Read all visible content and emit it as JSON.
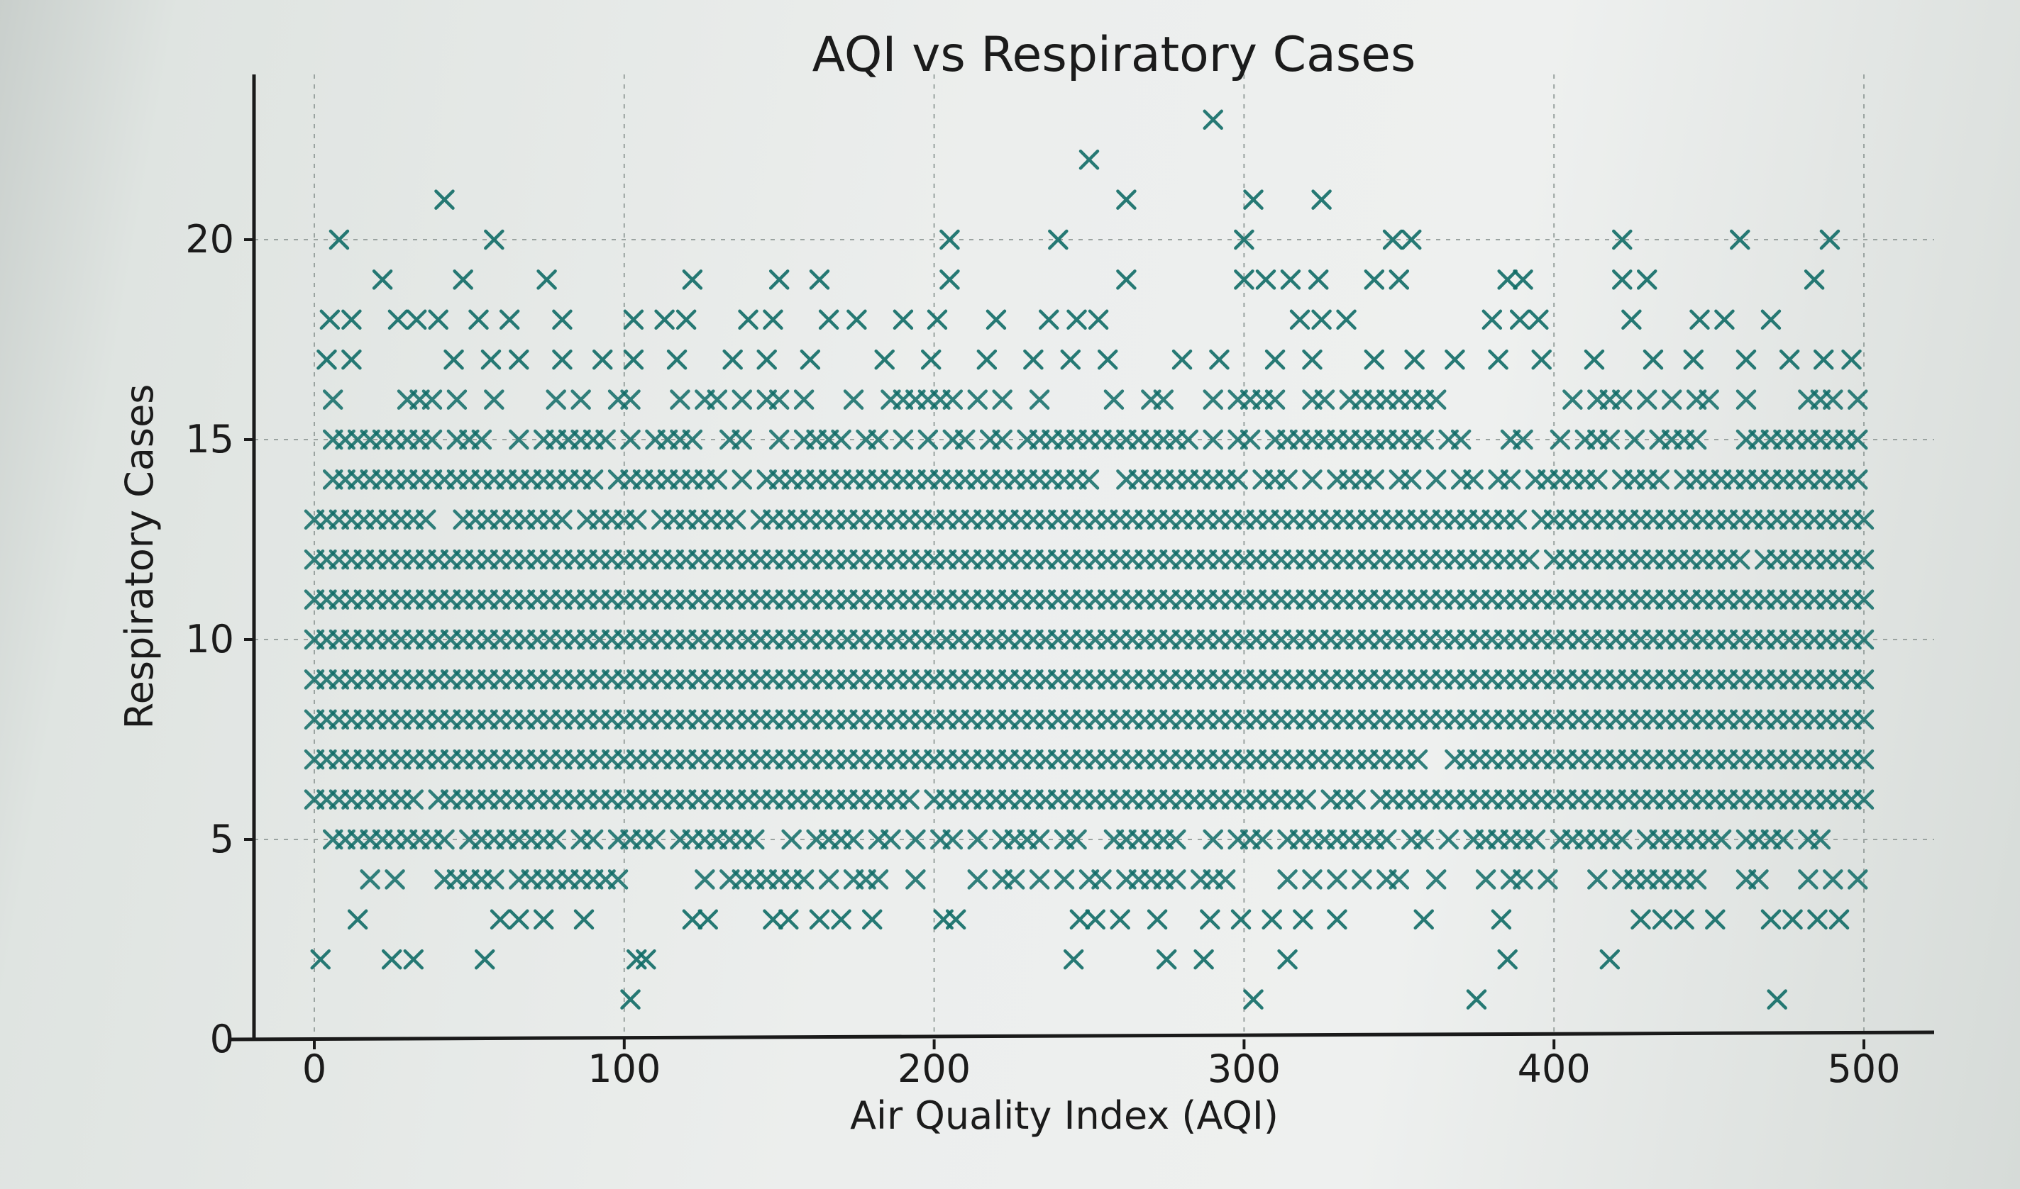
{
  "chart_data": {
    "type": "scatter",
    "title": "AQI vs Respiratory Cases",
    "xlabel": "Air Quality Index (AQI)",
    "ylabel": "Respiratory Cases",
    "xlim": [
      -25,
      525
    ],
    "ylim": [
      0,
      23
    ],
    "xticks": [
      0,
      100,
      200,
      300,
      400,
      500
    ],
    "yticks": [
      0,
      5,
      10,
      15,
      20
    ],
    "grid": true,
    "legend": "none",
    "marker": "x",
    "color": "#0f6b66",
    "x_range": [
      0,
      500
    ],
    "series": [
      {
        "points": [
          [
            2,
            2
          ],
          [
            25,
            2
          ],
          [
            32,
            2
          ],
          [
            55,
            2
          ],
          [
            104,
            2
          ],
          [
            107,
            2
          ],
          [
            245,
            2
          ],
          [
            275,
            2
          ],
          [
            287,
            2
          ],
          [
            314,
            2
          ],
          [
            385,
            2
          ],
          [
            418,
            2
          ],
          [
            102,
            1
          ],
          [
            303,
            1
          ],
          [
            375,
            1
          ],
          [
            472,
            1
          ],
          [
            14,
            3
          ],
          [
            60,
            3
          ],
          [
            66,
            3
          ],
          [
            74,
            3
          ],
          [
            87,
            3
          ],
          [
            122,
            3
          ],
          [
            127,
            3
          ],
          [
            148,
            3
          ],
          [
            153,
            3
          ],
          [
            163,
            3
          ],
          [
            170,
            3
          ],
          [
            180,
            3
          ],
          [
            203,
            3
          ],
          [
            207,
            3
          ],
          [
            247,
            3
          ],
          [
            252,
            3
          ],
          [
            260,
            3
          ],
          [
            272,
            3
          ],
          [
            289,
            3
          ],
          [
            299,
            3
          ],
          [
            309,
            3
          ],
          [
            319,
            3
          ],
          [
            330,
            3
          ],
          [
            358,
            3
          ],
          [
            383,
            3
          ],
          [
            428,
            3
          ],
          [
            435,
            3
          ],
          [
            442,
            3
          ],
          [
            452,
            3
          ],
          [
            470,
            3
          ],
          [
            477,
            3
          ],
          [
            485,
            3
          ],
          [
            492,
            3
          ],
          [
            8,
            20
          ],
          [
            58,
            20
          ],
          [
            42,
            21
          ],
          [
            250,
            22
          ],
          [
            262,
            21
          ],
          [
            290,
            23
          ],
          [
            303,
            21
          ],
          [
            325,
            21
          ],
          [
            205,
            20
          ],
          [
            240,
            20
          ],
          [
            300,
            20
          ],
          [
            348,
            20
          ],
          [
            354,
            20
          ],
          [
            422,
            20
          ],
          [
            460,
            20
          ],
          [
            489,
            20
          ],
          [
            22,
            19
          ],
          [
            48,
            19
          ],
          [
            75,
            19
          ],
          [
            122,
            19
          ],
          [
            150,
            19
          ],
          [
            163,
            19
          ],
          [
            205,
            19
          ],
          [
            262,
            19
          ],
          [
            300,
            19
          ],
          [
            307,
            19
          ],
          [
            315,
            19
          ],
          [
            324,
            19
          ],
          [
            342,
            19
          ],
          [
            350,
            19
          ],
          [
            385,
            19
          ],
          [
            390,
            19
          ],
          [
            422,
            19
          ],
          [
            430,
            19
          ],
          [
            484,
            19
          ],
          [
            5,
            18
          ],
          [
            12,
            18
          ],
          [
            27,
            18
          ],
          [
            33,
            18
          ],
          [
            40,
            18
          ],
          [
            53,
            18
          ],
          [
            63,
            18
          ],
          [
            80,
            18
          ],
          [
            103,
            18
          ],
          [
            113,
            18
          ],
          [
            120,
            18
          ],
          [
            140,
            18
          ],
          [
            148,
            18
          ],
          [
            166,
            18
          ],
          [
            175,
            18
          ],
          [
            190,
            18
          ],
          [
            201,
            18
          ],
          [
            220,
            18
          ],
          [
            237,
            18
          ],
          [
            246,
            18
          ],
          [
            253,
            18
          ],
          [
            318,
            18
          ],
          [
            325,
            18
          ],
          [
            333,
            18
          ],
          [
            380,
            18
          ],
          [
            389,
            18
          ],
          [
            395,
            18
          ],
          [
            425,
            18
          ],
          [
            447,
            18
          ],
          [
            455,
            18
          ],
          [
            470,
            18
          ],
          [
            4,
            17
          ],
          [
            12,
            17
          ],
          [
            45,
            17
          ],
          [
            57,
            17
          ],
          [
            66,
            17
          ],
          [
            80,
            17
          ],
          [
            93,
            17
          ],
          [
            103,
            17
          ],
          [
            117,
            17
          ],
          [
            135,
            17
          ],
          [
            146,
            17
          ],
          [
            160,
            17
          ],
          [
            184,
            17
          ],
          [
            199,
            17
          ],
          [
            217,
            17
          ],
          [
            232,
            17
          ],
          [
            244,
            17
          ],
          [
            256,
            17
          ],
          [
            280,
            17
          ],
          [
            292,
            17
          ],
          [
            310,
            17
          ],
          [
            322,
            17
          ],
          [
            342,
            17
          ],
          [
            355,
            17
          ],
          [
            368,
            17
          ],
          [
            382,
            17
          ],
          [
            396,
            17
          ],
          [
            413,
            17
          ],
          [
            432,
            17
          ],
          [
            445,
            17
          ],
          [
            462,
            17
          ],
          [
            476,
            17
          ],
          [
            487,
            17
          ],
          [
            496,
            17
          ]
        ]
      }
    ]
  }
}
